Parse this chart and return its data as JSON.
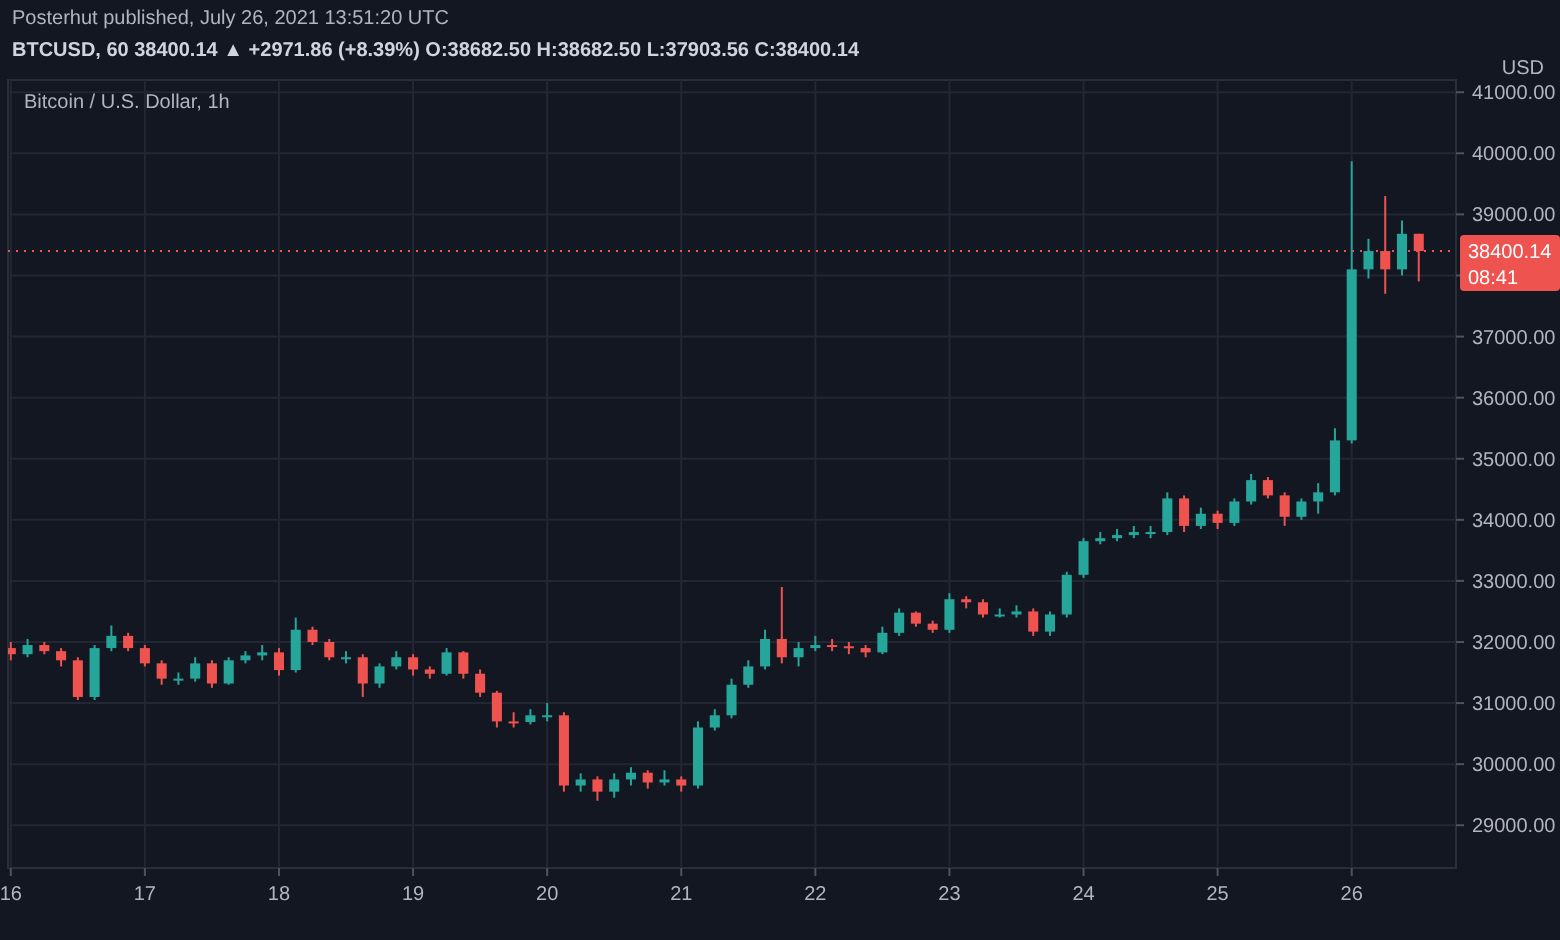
{
  "chart_data": {
    "type": "candlestick",
    "title": "Bitcoin / U.S. Dollar, 1h",
    "subtitle": "BTCUSD, 60  38400.14 ▲ +2971.86 (+8.39%) O:38682.50 H:38682.50 L:37903.56 C:38400.14",
    "ylabel": "USD",
    "annotations": [
      "Posterhut published, July 26, 2021 13:51:20 UTC",
      "08:41"
    ],
    "x": [
      "2021-07-16T00:00",
      "2021-07-16T03:00",
      "2021-07-16T06:00",
      "2021-07-16T09:00",
      "2021-07-16T12:00",
      "2021-07-16T15:00",
      "2021-07-16T18:00",
      "2021-07-16T21:00",
      "2021-07-17T00:00",
      "2021-07-17T03:00",
      "2021-07-17T06:00",
      "2021-07-17T09:00",
      "2021-07-17T12:00",
      "2021-07-17T15:00",
      "2021-07-17T18:00",
      "2021-07-17T21:00",
      "2021-07-18T00:00",
      "2021-07-18T03:00",
      "2021-07-18T06:00",
      "2021-07-18T09:00",
      "2021-07-18T12:00",
      "2021-07-18T15:00",
      "2021-07-18T18:00",
      "2021-07-18T21:00",
      "2021-07-19T00:00",
      "2021-07-19T03:00",
      "2021-07-19T06:00",
      "2021-07-19T09:00",
      "2021-07-19T12:00",
      "2021-07-19T15:00",
      "2021-07-19T18:00",
      "2021-07-19T21:00",
      "2021-07-20T00:00",
      "2021-07-20T03:00",
      "2021-07-20T06:00",
      "2021-07-20T09:00",
      "2021-07-20T12:00",
      "2021-07-20T15:00",
      "2021-07-20T18:00",
      "2021-07-20T21:00",
      "2021-07-21T00:00",
      "2021-07-21T03:00",
      "2021-07-21T06:00",
      "2021-07-21T09:00",
      "2021-07-21T12:00",
      "2021-07-21T15:00",
      "2021-07-21T18:00",
      "2021-07-21T21:00",
      "2021-07-22T00:00",
      "2021-07-22T03:00",
      "2021-07-22T06:00",
      "2021-07-22T09:00",
      "2021-07-22T12:00",
      "2021-07-22T15:00",
      "2021-07-22T18:00",
      "2021-07-22T21:00",
      "2021-07-23T00:00",
      "2021-07-23T03:00",
      "2021-07-23T06:00",
      "2021-07-23T09:00",
      "2021-07-23T12:00",
      "2021-07-23T15:00",
      "2021-07-23T18:00",
      "2021-07-23T21:00",
      "2021-07-24T00:00",
      "2021-07-24T03:00",
      "2021-07-24T06:00",
      "2021-07-24T09:00",
      "2021-07-24T12:00",
      "2021-07-24T15:00",
      "2021-07-24T18:00",
      "2021-07-24T21:00",
      "2021-07-25T00:00",
      "2021-07-25T03:00",
      "2021-07-25T06:00",
      "2021-07-25T09:00",
      "2021-07-25T12:00",
      "2021-07-25T15:00",
      "2021-07-25T18:00",
      "2021-07-25T21:00",
      "2021-07-26T00:00",
      "2021-07-26T03:00",
      "2021-07-26T06:00",
      "2021-07-26T09:00",
      "2021-07-26T12:00"
    ],
    "ohlc": [
      [
        31900,
        32000,
        31700,
        31800
      ],
      [
        31800,
        32050,
        31750,
        31950
      ],
      [
        31950,
        32000,
        31800,
        31850
      ],
      [
        31850,
        31900,
        31600,
        31700
      ],
      [
        31700,
        31750,
        31050,
        31100
      ],
      [
        31100,
        31950,
        31050,
        31900
      ],
      [
        31900,
        32270,
        31850,
        32100
      ],
      [
        32100,
        32150,
        31850,
        31900
      ],
      [
        31900,
        31950,
        31600,
        31650
      ],
      [
        31650,
        31700,
        31300,
        31400
      ],
      [
        31400,
        31500,
        31300,
        31400
      ],
      [
        31400,
        31750,
        31350,
        31650
      ],
      [
        31650,
        31700,
        31250,
        31320
      ],
      [
        31320,
        31750,
        31300,
        31700
      ],
      [
        31700,
        31850,
        31650,
        31780
      ],
      [
        31780,
        31950,
        31700,
        31830
      ],
      [
        31830,
        31900,
        31450,
        31540
      ],
      [
        31540,
        32400,
        31500,
        32200
      ],
      [
        32200,
        32250,
        31950,
        32000
      ],
      [
        32000,
        32050,
        31700,
        31750
      ],
      [
        31750,
        31850,
        31650,
        31750
      ],
      [
        31750,
        31800,
        31100,
        31320
      ],
      [
        31320,
        31650,
        31250,
        31600
      ],
      [
        31600,
        31850,
        31550,
        31750
      ],
      [
        31750,
        31800,
        31450,
        31550
      ],
      [
        31550,
        31600,
        31400,
        31480
      ],
      [
        31480,
        31900,
        31450,
        31830
      ],
      [
        31830,
        31850,
        31400,
        31480
      ],
      [
        31480,
        31550,
        31100,
        31170
      ],
      [
        31170,
        31200,
        30600,
        30700
      ],
      [
        30700,
        30850,
        30600,
        30690
      ],
      [
        30690,
        30900,
        30650,
        30800
      ],
      [
        30800,
        31000,
        30700,
        30800
      ],
      [
        30800,
        30850,
        29550,
        29650
      ],
      [
        29650,
        29850,
        29550,
        29750
      ],
      [
        29750,
        29800,
        29400,
        29550
      ],
      [
        29550,
        29850,
        29450,
        29750
      ],
      [
        29750,
        29950,
        29650,
        29860
      ],
      [
        29860,
        29900,
        29600,
        29700
      ],
      [
        29700,
        29900,
        29650,
        29750
      ],
      [
        29750,
        29800,
        29550,
        29650
      ],
      [
        29650,
        30700,
        29600,
        30600
      ],
      [
        30600,
        30900,
        30550,
        30800
      ],
      [
        30800,
        31400,
        30750,
        31300
      ],
      [
        31300,
        31700,
        31250,
        31600
      ],
      [
        31600,
        32200,
        31550,
        32050
      ],
      [
        32050,
        32900,
        31650,
        31750
      ],
      [
        31750,
        32000,
        31600,
        31900
      ],
      [
        31900,
        32100,
        31850,
        31950
      ],
      [
        31950,
        32050,
        31850,
        31930
      ],
      [
        31930,
        32000,
        31800,
        31900
      ],
      [
        31900,
        31950,
        31750,
        31830
      ],
      [
        31830,
        32250,
        31800,
        32150
      ],
      [
        32150,
        32550,
        32100,
        32480
      ],
      [
        32480,
        32500,
        32250,
        32300
      ],
      [
        32300,
        32350,
        32150,
        32200
      ],
      [
        32200,
        32800,
        32150,
        32700
      ],
      [
        32700,
        32750,
        32550,
        32650
      ],
      [
        32650,
        32700,
        32400,
        32450
      ],
      [
        32450,
        32550,
        32400,
        32450
      ],
      [
        32450,
        32600,
        32400,
        32500
      ],
      [
        32500,
        32550,
        32100,
        32170
      ],
      [
        32170,
        32500,
        32100,
        32450
      ],
      [
        32450,
        33150,
        32400,
        33100
      ],
      [
        33100,
        33700,
        33050,
        33650
      ],
      [
        33650,
        33800,
        33600,
        33700
      ],
      [
        33700,
        33850,
        33650,
        33750
      ],
      [
        33750,
        33900,
        33700,
        33800
      ],
      [
        33800,
        33900,
        33700,
        33800
      ],
      [
        33800,
        34450,
        33750,
        34350
      ],
      [
        34350,
        34400,
        33800,
        33900
      ],
      [
        33900,
        34200,
        33850,
        34100
      ],
      [
        34100,
        34150,
        33850,
        33950
      ],
      [
        33950,
        34350,
        33900,
        34300
      ],
      [
        34300,
        34750,
        34250,
        34650
      ],
      [
        34650,
        34700,
        34350,
        34400
      ],
      [
        34400,
        34450,
        33900,
        34050
      ],
      [
        34050,
        34350,
        34000,
        34300
      ],
      [
        34300,
        34600,
        34100,
        34450
      ],
      [
        34450,
        35500,
        34400,
        35300
      ],
      [
        35300,
        39870,
        35250,
        38100
      ],
      [
        38100,
        38600,
        37950,
        38400
      ],
      [
        38400,
        39300,
        37700,
        38100
      ],
      [
        38100,
        38900,
        38000,
        38682.5
      ],
      [
        38682.5,
        38682.5,
        37903.56,
        38400.14
      ]
    ],
    "xlim": [
      "2021-07-15T23:30",
      "2021-07-26T18:40"
    ],
    "xticks": [
      {
        "value": "2021-07-16",
        "label": "16"
      },
      {
        "value": "2021-07-17",
        "label": "17"
      },
      {
        "value": "2021-07-18",
        "label": "18"
      },
      {
        "value": "2021-07-19",
        "label": "19"
      },
      {
        "value": "2021-07-20",
        "label": "20"
      },
      {
        "value": "2021-07-21",
        "label": "21"
      },
      {
        "value": "2021-07-22",
        "label": "22"
      },
      {
        "value": "2021-07-23",
        "label": "23"
      },
      {
        "value": "2021-07-24",
        "label": "24"
      },
      {
        "value": "2021-07-25",
        "label": "25"
      },
      {
        "value": "2021-07-26",
        "label": "26"
      }
    ],
    "ylim": [
      28300,
      41200
    ],
    "yticks": [
      {
        "value": 29000,
        "label": "29000.00"
      },
      {
        "value": 30000,
        "label": "30000.00"
      },
      {
        "value": 31000,
        "label": "31000.00"
      },
      {
        "value": 32000,
        "label": "32000.00"
      },
      {
        "value": 33000,
        "label": "33000.00"
      },
      {
        "value": 34000,
        "label": "34000.00"
      },
      {
        "value": 35000,
        "label": "35000.00"
      },
      {
        "value": 36000,
        "label": "36000.00"
      },
      {
        "value": 37000,
        "label": "37000.00"
      },
      {
        "value": 38000,
        "label": null
      },
      {
        "value": 39000,
        "label": "39000.00"
      },
      {
        "value": 40000,
        "label": "40000.00"
      },
      {
        "value": 41000,
        "label": "41000.00"
      }
    ],
    "grid": true,
    "ref_lines": [
      {
        "axis": "y",
        "value": 38400.14,
        "label": "38400.14",
        "color": "#ef5350",
        "line_style": "dotted"
      }
    ]
  }
}
